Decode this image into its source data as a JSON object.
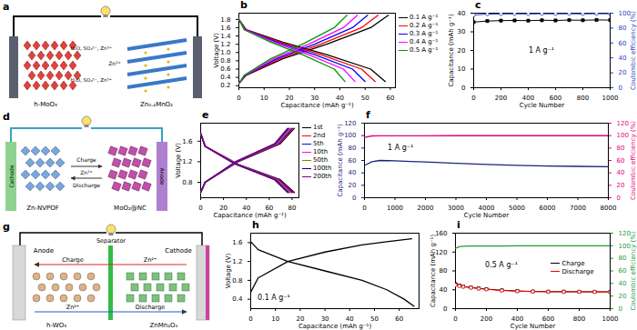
{
  "chart_data": [
    {
      "panel": "b",
      "type": "line",
      "xlabel": "Capacitance (mAh g⁻¹)",
      "ylabel": "Voltage (V)",
      "xlim": [
        0,
        62
      ],
      "xticks": [
        0,
        10,
        20,
        30,
        40,
        50,
        60
      ],
      "ylim": [
        0.15,
        1.95
      ],
      "yticks": [
        0.2,
        0.4,
        0.6,
        0.8,
        {
          "value": 1,
          "label": "1.0"
        },
        1.2,
        1.4,
        1.6,
        1.8
      ],
      "legend": "right",
      "series": [
        {
          "name": "0.1 A g⁻¹",
          "color": "#000000",
          "marker": "none",
          "line_style": "solid",
          "x": [
            0,
            2.9,
            17.4,
            34.8,
            52.2,
            58,
            null,
            0,
            2.9,
            17.4,
            34.8,
            52.2,
            59.2
          ],
          "values": [
            1.8,
            1.55,
            1.25,
            0.95,
            0.6,
            0.3,
            null,
            0.25,
            0.45,
            0.85,
            1.2,
            1.6,
            1.9
          ]
        },
        {
          "name": "0.2 A g⁻¹",
          "color": "#ff0000",
          "marker": "none",
          "line_style": "solid",
          "x": [
            0,
            2.7,
            16.2,
            32.4,
            48.6,
            54,
            null,
            0,
            2.7,
            16.2,
            32.4,
            48.6,
            55.1
          ],
          "values": [
            1.8,
            1.55,
            1.25,
            0.95,
            0.6,
            0.3,
            null,
            0.25,
            0.45,
            0.85,
            1.2,
            1.6,
            1.9
          ]
        },
        {
          "name": "0.3 A g⁻¹",
          "color": "#0000ff",
          "marker": "none",
          "line_style": "solid",
          "x": [
            0,
            2.5,
            15,
            30,
            45,
            50,
            null,
            0,
            2.5,
            15,
            30,
            45,
            51
          ],
          "values": [
            1.8,
            1.55,
            1.25,
            0.95,
            0.6,
            0.3,
            null,
            0.25,
            0.45,
            0.85,
            1.2,
            1.6,
            1.9
          ]
        },
        {
          "name": "0.4 A g⁻¹",
          "color": "#ff00ff",
          "marker": "none",
          "line_style": "solid",
          "x": [
            0,
            2.3,
            13.8,
            27.6,
            41.4,
            46,
            null,
            0,
            2.3,
            13.8,
            27.6,
            41.4,
            46.9
          ],
          "values": [
            1.8,
            1.55,
            1.25,
            0.95,
            0.6,
            0.3,
            null,
            0.25,
            0.45,
            0.85,
            1.2,
            1.6,
            1.9
          ]
        },
        {
          "name": "0.5 A g⁻¹",
          "color": "#009900",
          "marker": "none",
          "line_style": "solid",
          "x": [
            0,
            2.1,
            12.6,
            25.2,
            37.8,
            42,
            null,
            0,
            2.1,
            12.6,
            25.2,
            37.8,
            42.8
          ],
          "values": [
            1.8,
            1.55,
            1.25,
            0.95,
            0.6,
            0.3,
            null,
            0.25,
            0.45,
            0.85,
            1.2,
            1.6,
            1.9
          ]
        }
      ]
    },
    {
      "panel": "c",
      "type": "line",
      "xlabel": "Cycle Number",
      "ylabel": "Capacitance (mAh g⁻¹)",
      "y2label": "Coulombic efficiency (%)",
      "xlim": [
        0,
        1000
      ],
      "xticks": [
        0,
        200,
        400,
        600,
        800,
        1000
      ],
      "ylim": [
        0,
        40
      ],
      "yticks": [
        0,
        10,
        20,
        30,
        40
      ],
      "y2lim": [
        0,
        100
      ],
      "y2ticks": [
        0,
        20,
        40,
        60,
        80,
        100
      ],
      "annotations": [
        "1 A g⁻¹"
      ],
      "x": [
        0,
        100,
        200,
        300,
        400,
        500,
        600,
        700,
        800,
        900,
        1000
      ],
      "series": [
        {
          "color": "#000000",
          "marker": "square",
          "line_style": "solid",
          "values": [
            35.2,
            35.8,
            36.0,
            36.1,
            36.0,
            36.2,
            36.1,
            36.3,
            36.2,
            36.4,
            36.3
          ]
        },
        {
          "color": "#1f3fbf",
          "marker": "circle",
          "line_style": "solid",
          "axis": "y2",
          "values": [
            97.5,
            98.8,
            99,
            99.1,
            99,
            99.2,
            99.1,
            99.2,
            99.1,
            99.3,
            99.2
          ]
        }
      ]
    },
    {
      "panel": "e",
      "type": "line",
      "xlabel": "Capacitance (mAh g⁻¹)",
      "ylabel": "Voltage (V)",
      "xlim": [
        0,
        86
      ],
      "xticks": [
        0,
        20,
        40,
        60,
        80
      ],
      "ylim": [
        0.5,
        1.95
      ],
      "yticks": [
        0.8,
        1.2,
        1.6
      ],
      "legend": "right",
      "series": [
        {
          "name": "1st",
          "color": "#000000",
          "marker": "none",
          "line_style": "solid",
          "x": [
            0,
            4.1,
            32.8,
            69.7,
            82,
            null,
            0,
            4.1,
            32.8,
            69.7,
            82
          ],
          "values": [
            1.75,
            1.5,
            1.15,
            0.85,
            0.6,
            null,
            0.6,
            0.8,
            1.2,
            1.55,
            1.85
          ]
        },
        {
          "name": "2nd",
          "color": "#ff0000",
          "marker": "none",
          "line_style": "solid",
          "x": [
            0,
            4.05,
            32.4,
            68.85,
            81,
            null,
            0,
            4.05,
            32.4,
            68.85,
            81
          ],
          "values": [
            1.75,
            1.5,
            1.15,
            0.85,
            0.6,
            null,
            0.6,
            0.8,
            1.2,
            1.55,
            1.85
          ]
        },
        {
          "name": "5th",
          "color": "#0000ff",
          "marker": "none",
          "line_style": "solid",
          "x": [
            0,
            4,
            32,
            68,
            80,
            null,
            0,
            4,
            32,
            68,
            80
          ],
          "values": [
            1.75,
            1.5,
            1.15,
            0.85,
            0.6,
            null,
            0.6,
            0.8,
            1.2,
            1.55,
            1.85
          ]
        },
        {
          "name": "10th",
          "color": "#ff00ff",
          "marker": "none",
          "line_style": "solid",
          "x": [
            0,
            3.95,
            31.6,
            67.15,
            79,
            null,
            0,
            3.95,
            31.6,
            67.15,
            79
          ],
          "values": [
            1.75,
            1.5,
            1.15,
            0.85,
            0.6,
            null,
            0.6,
            0.8,
            1.2,
            1.55,
            1.85
          ]
        },
        {
          "name": "50th",
          "color": "#808000",
          "marker": "none",
          "line_style": "solid",
          "x": [
            0,
            3.9,
            31.2,
            66.3,
            78,
            null,
            0,
            3.9,
            31.2,
            66.3,
            78
          ],
          "values": [
            1.75,
            1.5,
            1.15,
            0.85,
            0.6,
            null,
            0.6,
            0.8,
            1.2,
            1.55,
            1.85
          ]
        },
        {
          "name": "100th",
          "color": "#000080",
          "marker": "none",
          "line_style": "solid",
          "x": [
            0,
            3.85,
            30.8,
            65.45,
            77,
            null,
            0,
            3.85,
            30.8,
            65.45,
            77
          ],
          "values": [
            1.75,
            1.5,
            1.15,
            0.85,
            0.6,
            null,
            0.6,
            0.8,
            1.2,
            1.55,
            1.85
          ]
        },
        {
          "name": "200th",
          "color": "#800080",
          "marker": "none",
          "line_style": "solid",
          "x": [
            0,
            3.8,
            30.4,
            64.6,
            76,
            null,
            0,
            3.8,
            30.4,
            64.6,
            76
          ],
          "values": [
            1.75,
            1.5,
            1.15,
            0.85,
            0.6,
            null,
            0.6,
            0.8,
            1.2,
            1.55,
            1.85
          ]
        }
      ]
    },
    {
      "panel": "f",
      "type": "line",
      "xlabel": "Cycle Number",
      "ylabel": "Capacitance (mAh g⁻¹)",
      "y2label": "Coulombic efficiency (%)",
      "xlim": [
        0,
        8000
      ],
      "xticks": [
        0,
        1000,
        2000,
        3000,
        4000,
        5000,
        6000,
        7000,
        8000
      ],
      "ylim": [
        0,
        120
      ],
      "yticks": [
        0,
        20,
        40,
        60,
        80,
        100,
        120
      ],
      "y2lim": [
        0,
        120
      ],
      "y2ticks": [
        0,
        20,
        40,
        60,
        80,
        100,
        120
      ],
      "annotations": [
        "1 A g⁻¹"
      ],
      "x": [
        0,
        250,
        500,
        1000,
        1500,
        2000,
        3000,
        4000,
        5000,
        6000,
        7000,
        8000
      ],
      "series": [
        {
          "color": "#1a237e",
          "marker": "none",
          "line_style": "solid",
          "values": [
            52,
            58,
            60,
            59.5,
            58.5,
            57.5,
            55.5,
            53.5,
            52,
            51,
            50.5,
            50
          ]
        },
        {
          "color": "#e6007e",
          "marker": "none",
          "line_style": "solid",
          "axis": "y2",
          "values": [
            97,
            99.5,
            99.7,
            99.8,
            99.8,
            99.8,
            99.9,
            99.9,
            99.9,
            99.9,
            99.9,
            99.9
          ]
        }
      ]
    },
    {
      "panel": "h",
      "type": "line",
      "xlabel": "Capacitance (mAh g⁻¹)",
      "ylabel": "Voltage (V)",
      "xlim": [
        0,
        68
      ],
      "xticks": [
        0,
        10,
        20,
        30,
        40,
        50,
        60
      ],
      "ylim": [
        0.2,
        1.8
      ],
      "yticks": [
        0.4,
        0.8,
        1.2,
        1.6
      ],
      "annotations": [
        "0.1 A g⁻¹"
      ],
      "series": [
        {
          "color": "#000000",
          "marker": "none",
          "line_style": "solid",
          "x": [
            0,
            3,
            15,
            30,
            45,
            55,
            62,
            66,
            null,
            0,
            3,
            15,
            30,
            45,
            55,
            65
          ],
          "values": [
            1.62,
            1.45,
            1.2,
            1.0,
            0.8,
            0.6,
            0.4,
            0.25,
            null,
            0.55,
            0.85,
            1.2,
            1.4,
            1.55,
            1.62,
            1.68
          ]
        }
      ]
    },
    {
      "panel": "i",
      "type": "line",
      "xlabel": "Cycle Number",
      "ylabel": "Capacitance (mAh g⁻¹)",
      "y2label": "Coulombic efficiency (%)",
      "xlim": [
        0,
        1000
      ],
      "xticks": [
        0,
        200,
        400,
        600,
        800,
        1000
      ],
      "ylim": [
        0,
        160
      ],
      "yticks": [
        0,
        40,
        80,
        120,
        160
      ],
      "y2lim": [
        0,
        120
      ],
      "y2ticks": [
        0,
        20,
        40,
        60,
        80,
        100,
        120
      ],
      "annotations": [
        "0.5 A g⁻¹"
      ],
      "legend": "center right",
      "x": [
        0,
        25,
        50,
        100,
        150,
        200,
        300,
        400,
        500,
        600,
        700,
        800,
        900,
        1000
      ],
      "series": [
        {
          "name": "Charge",
          "color": "#000000",
          "marker": "square",
          "line_style": "solid",
          "values": [
            52,
            49,
            47,
            45,
            43,
            41.5,
            39,
            37.5,
            36.5,
            36,
            36,
            35.8,
            35.7,
            35.6
          ]
        },
        {
          "name": "Discharge",
          "color": "#ff0000",
          "marker": "circle",
          "line_style": "solid",
          "values": [
            50,
            48,
            46.5,
            44.5,
            42.5,
            41,
            38.5,
            37,
            36.2,
            35.8,
            35.7,
            35.6,
            35.5,
            35.4
          ]
        },
        {
          "color": "#1a9c3a",
          "marker": "none",
          "line_style": "solid",
          "axis": "y2",
          "values": [
            96,
            98.5,
            99.2,
            99.5,
            99.6,
            99.7,
            99.7,
            99.8,
            99.8,
            99.8,
            99.8,
            99.8,
            99.8,
            99.8
          ]
        }
      ]
    }
  ],
  "diagrams": [
    {
      "panel": "a",
      "left_material": "h-MoO₃",
      "right_material": "Zn₀.₂MnO₂",
      "electrolyte": "H₂O, SO₄²⁻, Zn²⁺",
      "ion": "Zn²⁺"
    },
    {
      "panel": "d",
      "cathode": "Cathode",
      "anode": "Anode",
      "cathode_material": "Zn-NVPOF",
      "anode_material": "MoO₂@NC",
      "charge": "Charge",
      "discharge": "Discharge",
      "ion": "Zn²⁺"
    },
    {
      "panel": "g",
      "anode": "Anode",
      "cathode": "Cathode",
      "separator": "Separator",
      "anode_material": "h-WO₃",
      "cathode_material": "ZnMn₂O₄",
      "charge": "Charge",
      "discharge": "Discharge",
      "ion": "Zn²⁺"
    }
  ]
}
